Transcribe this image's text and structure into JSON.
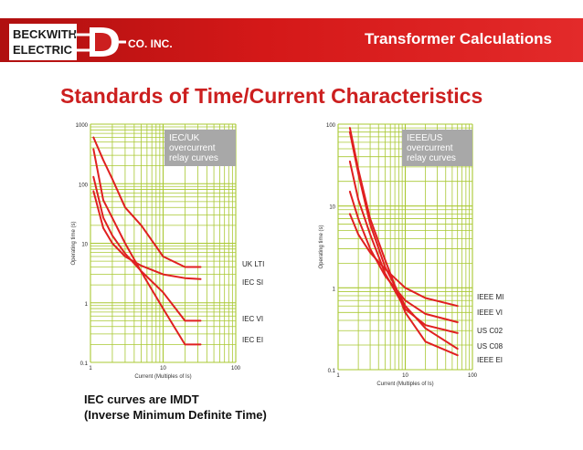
{
  "header": {
    "logo_line1": "BECKWITH",
    "logo_line2": "ELECTRIC",
    "logo_suffix": "CO. INC.",
    "title": "Transformer Calculations"
  },
  "slide": {
    "title": "Standards of Time/Current Characteristics",
    "caption_line1": "IEC curves are IMDT",
    "caption_line2": "(Inverse Minimum Definite Time)"
  },
  "colors": {
    "brand_red": "#cc1f1f",
    "grid": "#a9c832",
    "curve": "#e02020",
    "label_box": "#a8a8a8"
  },
  "chart_data": [
    {
      "type": "line",
      "title": "",
      "box_label": [
        "IEC/UK",
        "overcurrent",
        "relay curves"
      ],
      "xlabel": "Current (Multiples of Is)",
      "ylabel": "Operating time (s)",
      "x_scale": "log",
      "y_scale": "log",
      "xlim": [
        1,
        100
      ],
      "ylim": [
        0.1,
        1000
      ],
      "xticks": [
        1,
        10,
        100
      ],
      "xtick_labels": [
        "1",
        "10",
        "100"
      ],
      "yticks": [
        0.1,
        1,
        10,
        100,
        1000
      ],
      "ytick_labels": [
        "0.1",
        "1",
        "10",
        "100",
        "1000"
      ],
      "grid": true,
      "series": [
        {
          "name": "UK LTI",
          "x": [
            1.1,
            1.5,
            2,
            3,
            5,
            10,
            20,
            32.8
          ],
          "y": [
            600,
            250,
            120,
            40,
            20,
            6,
            4.0,
            4.0
          ]
        },
        {
          "name": "IEC SI",
          "x": [
            1.1,
            1.5,
            2,
            3,
            5,
            10,
            20,
            32.8
          ],
          "y": [
            75,
            18,
            10,
            6,
            4.2,
            3.0,
            2.6,
            2.5
          ]
        },
        {
          "name": "IEC VI",
          "x": [
            1.1,
            1.5,
            2,
            3,
            5,
            10,
            20,
            32.8
          ],
          "y": [
            130,
            27,
            13.5,
            6.7,
            3.4,
            1.5,
            0.5,
            0.5
          ]
        },
        {
          "name": "IEC EI",
          "x": [
            1.1,
            1.5,
            2,
            3,
            5,
            10,
            20,
            32.8
          ],
          "y": [
            380,
            53,
            26.7,
            10,
            3.3,
            0.8,
            0.2,
            0.2
          ]
        }
      ]
    },
    {
      "type": "line",
      "title": "",
      "box_label": [
        "IEEE/US",
        "overcurrent",
        "relay curves"
      ],
      "xlabel": "Current (Multiples of Is)",
      "ylabel": "Operating time (s)",
      "x_scale": "log",
      "y_scale": "log",
      "xlim": [
        1,
        100
      ],
      "ylim": [
        0.1,
        100
      ],
      "xticks": [
        1,
        10,
        100
      ],
      "xtick_labels": [
        "1",
        "10",
        "100"
      ],
      "yticks": [
        0.1,
        1,
        10,
        100
      ],
      "ytick_labels": [
        "0.1",
        "1",
        "10",
        "100"
      ],
      "grid": true,
      "series": [
        {
          "name": "IEEE MI",
          "x": [
            1.5,
            2,
            3,
            5,
            10,
            20,
            60
          ],
          "y": [
            8,
            4.5,
            2.7,
            1.7,
            1.0,
            0.75,
            0.6
          ]
        },
        {
          "name": "IEEE VI",
          "x": [
            1.5,
            2,
            3,
            5,
            10,
            20,
            60
          ],
          "y": [
            15,
            7,
            3,
            1.4,
            0.7,
            0.48,
            0.38
          ]
        },
        {
          "name": "US C02",
          "x": [
            1.5,
            2,
            3,
            5,
            10,
            20,
            60
          ],
          "y": [
            35,
            12,
            4.5,
            1.5,
            0.55,
            0.35,
            0.28
          ]
        },
        {
          "name": "US C08",
          "x": [
            1.5,
            2,
            3,
            5,
            10,
            20,
            60
          ],
          "y": [
            80,
            25,
            6,
            1.8,
            0.6,
            0.32,
            0.18
          ]
        },
        {
          "name": "IEEE EI",
          "x": [
            1.5,
            2,
            3,
            5,
            10,
            20,
            60
          ],
          "y": [
            90,
            28,
            7,
            2.2,
            0.5,
            0.22,
            0.15
          ]
        }
      ]
    }
  ]
}
